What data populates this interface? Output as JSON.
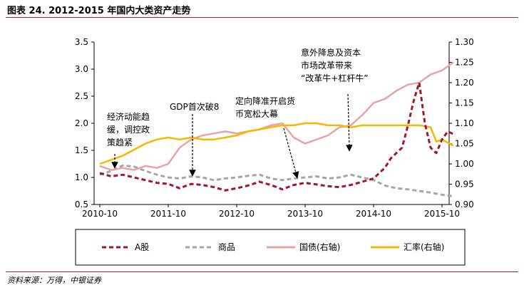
{
  "title": "图表 24. 2012-2015 年国内大类资产走势",
  "source": "资料来源：万得，中银证券",
  "chart_data": {
    "type": "line",
    "x_ticks": [
      "2010-10",
      "2011-10",
      "2012-10",
      "2013-10",
      "2014-10",
      "2015-10"
    ],
    "y_left": {
      "min": 0.5,
      "max": 3.5,
      "ticks": [
        "0.5",
        "1.0",
        "1.5",
        "2.0",
        "2.5",
        "3.0",
        "3.5"
      ]
    },
    "y_right": {
      "min": 0.9,
      "max": 1.3,
      "ticks": [
        "0.90",
        "0.95",
        "1.00",
        "1.05",
        "1.10",
        "1.15",
        "1.20",
        "1.25",
        "1.30"
      ]
    },
    "grid": false,
    "legend_position": "bottom",
    "series": [
      {
        "name": "A股",
        "axis": "left",
        "color": "#a0182c",
        "style": "dashed",
        "x": [
          "2010-10",
          "2010-12",
          "2011-02",
          "2011-04",
          "2011-06",
          "2011-08",
          "2011-10",
          "2011-12",
          "2012-02",
          "2012-04",
          "2012-06",
          "2012-08",
          "2012-10",
          "2012-12",
          "2013-02",
          "2013-04",
          "2013-06",
          "2013-08",
          "2013-10",
          "2013-12",
          "2014-02",
          "2014-04",
          "2014-06",
          "2014-08",
          "2014-10",
          "2014-12",
          "2015-01",
          "2015-03",
          "2015-04",
          "2015-05",
          "2015-06",
          "2015-07",
          "2015-08",
          "2015-09",
          "2015-10",
          "2015-11",
          "2015-12"
        ],
        "values": [
          1.08,
          1.02,
          1.05,
          1.0,
          0.95,
          0.9,
          0.88,
          0.8,
          0.88,
          0.86,
          0.82,
          0.76,
          0.8,
          0.85,
          0.92,
          0.86,
          0.78,
          0.86,
          0.9,
          0.87,
          0.84,
          0.82,
          0.86,
          0.92,
          0.98,
          1.18,
          1.35,
          1.55,
          1.95,
          2.4,
          2.75,
          2.0,
          1.55,
          1.45,
          1.7,
          1.85,
          1.8
        ]
      },
      {
        "name": "商品",
        "axis": "left",
        "color": "#a6a6a6",
        "style": "dashed",
        "x": [
          "2010-10",
          "2010-12",
          "2011-02",
          "2011-04",
          "2011-06",
          "2011-08",
          "2011-10",
          "2011-12",
          "2012-02",
          "2012-04",
          "2012-06",
          "2012-08",
          "2012-10",
          "2012-12",
          "2013-02",
          "2013-04",
          "2013-06",
          "2013-08",
          "2013-10",
          "2013-12",
          "2014-02",
          "2014-04",
          "2014-06",
          "2014-08",
          "2014-10",
          "2014-12",
          "2015-02",
          "2015-04",
          "2015-06",
          "2015-08",
          "2015-10",
          "2015-12"
        ],
        "values": [
          1.05,
          1.12,
          1.22,
          1.2,
          1.12,
          1.05,
          1.0,
          0.98,
          1.02,
          1.0,
          0.95,
          0.98,
          1.0,
          1.03,
          1.05,
          0.98,
          0.95,
          0.98,
          1.0,
          1.02,
          0.98,
          1.0,
          1.05,
          1.0,
          0.95,
          0.85,
          0.8,
          0.78,
          0.75,
          0.72,
          0.68,
          0.65
        ]
      },
      {
        "name": "国债(右轴)",
        "axis": "right",
        "color": "#e8a4a4",
        "style": "solid",
        "x": [
          "2010-10",
          "2010-12",
          "2011-02",
          "2011-04",
          "2011-06",
          "2011-08",
          "2011-10",
          "2011-12",
          "2012-02",
          "2012-04",
          "2012-06",
          "2012-08",
          "2012-10",
          "2012-12",
          "2013-02",
          "2013-04",
          "2013-06",
          "2013-08",
          "2013-10",
          "2013-12",
          "2014-02",
          "2014-04",
          "2014-06",
          "2014-08",
          "2014-10",
          "2014-12",
          "2015-02",
          "2015-04",
          "2015-06",
          "2015-08",
          "2015-10",
          "2015-12"
        ],
        "values": [
          0.995,
          0.985,
          0.99,
          0.985,
          0.995,
          0.99,
          1.0,
          1.04,
          1.06,
          1.07,
          1.075,
          1.08,
          1.075,
          1.08,
          1.085,
          1.095,
          1.1,
          1.065,
          1.05,
          1.06,
          1.07,
          1.09,
          1.095,
          1.12,
          1.15,
          1.16,
          1.18,
          1.195,
          1.2,
          1.22,
          1.23,
          1.25
        ]
      },
      {
        "name": "汇率(右轴)",
        "axis": "right",
        "color": "#f5b800",
        "style": "solid",
        "x": [
          "2010-10",
          "2010-12",
          "2011-02",
          "2011-04",
          "2011-06",
          "2011-08",
          "2011-10",
          "2011-12",
          "2012-02",
          "2012-04",
          "2012-06",
          "2012-08",
          "2012-10",
          "2012-12",
          "2013-02",
          "2013-04",
          "2013-06",
          "2013-08",
          "2013-10",
          "2013-12",
          "2014-02",
          "2014-04",
          "2014-06",
          "2014-08",
          "2014-10",
          "2014-12",
          "2015-02",
          "2015-04",
          "2015-06",
          "2015-08",
          "2015-09",
          "2015-10",
          "2015-12"
        ],
        "values": [
          1.0,
          1.01,
          1.02,
          1.035,
          1.05,
          1.06,
          1.065,
          1.06,
          1.065,
          1.06,
          1.06,
          1.065,
          1.07,
          1.08,
          1.085,
          1.09,
          1.095,
          1.095,
          1.1,
          1.1,
          1.095,
          1.095,
          1.09,
          1.095,
          1.095,
          1.095,
          1.095,
          1.095,
          1.095,
          1.09,
          1.055,
          1.06,
          1.045
        ]
      }
    ],
    "annotations": [
      {
        "lines": [
          "经济动能趋",
          "缓，调控政",
          "策趋紧"
        ]
      },
      {
        "lines": [
          "GDP首次破8"
        ]
      },
      {
        "lines": [
          "定向降准开启货",
          "币宽松大幕"
        ]
      },
      {
        "lines": [
          "意外降息及资本",
          "市场改革带来",
          "“改革牛+杠杆牛”"
        ]
      }
    ]
  }
}
